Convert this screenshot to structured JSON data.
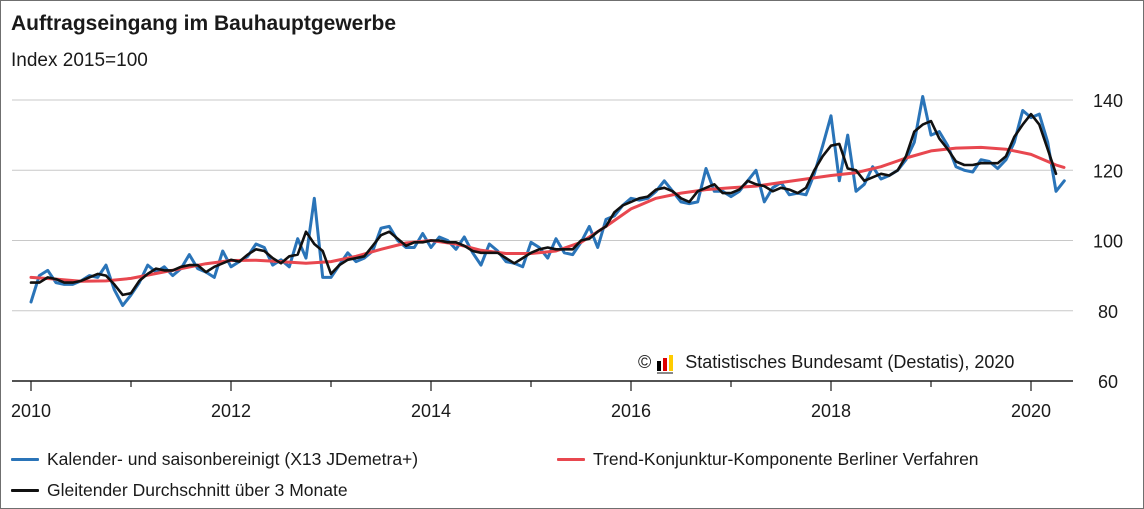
{
  "title": "Auftragseingang im Bauhauptgewerbe",
  "subtitle": "Index 2015=100",
  "copyright": {
    "symbol": "©",
    "text": "Statistisches Bundesamt (Destatis), 2020",
    "logo_colors": [
      "#000000",
      "#dd0000",
      "#ffcc00"
    ]
  },
  "legend": [
    {
      "label": "Kalender- und saisonbereinigt (X13 JDemetra+)",
      "color": "#2a74b8"
    },
    {
      "label": "Trend-Konjunktur-Komponente Berliner Verfahren",
      "color": "#e8474f"
    },
    {
      "label": "Gleitender Durchschnitt über 3 Monate",
      "color": "#111111"
    }
  ],
  "chart_data": {
    "type": "line",
    "title": "Auftragseingang im Bauhauptgewerbe",
    "ylabel": "Index 2015=100",
    "xlim": [
      2010,
      2020.35
    ],
    "ylim": [
      60,
      145
    ],
    "xticks": [
      "2010",
      "2012",
      "2014",
      "2016",
      "2018",
      "2020"
    ],
    "yticks": [
      "60",
      "80",
      "100",
      "120",
      "140"
    ],
    "grid": "horizontal",
    "legend_position": "bottom",
    "series": [
      {
        "name": "Kalender- und saisonbereinigt (X13 JDemetra+)",
        "color": "#2a74b8",
        "points": [
          [
            2010.0,
            82.5
          ],
          [
            2010.083,
            90
          ],
          [
            2010.167,
            91.5
          ],
          [
            2010.25,
            88
          ],
          [
            2010.333,
            87.5
          ],
          [
            2010.417,
            87.5
          ],
          [
            2010.5,
            88.5
          ],
          [
            2010.583,
            90
          ],
          [
            2010.667,
            89.5
          ],
          [
            2010.75,
            93
          ],
          [
            2010.833,
            86
          ],
          [
            2010.917,
            81.5
          ],
          [
            2011.0,
            84.5
          ],
          [
            2011.083,
            88
          ],
          [
            2011.167,
            93
          ],
          [
            2011.25,
            91
          ],
          [
            2011.333,
            92.5
          ],
          [
            2011.417,
            90
          ],
          [
            2011.5,
            92
          ],
          [
            2011.583,
            96
          ],
          [
            2011.667,
            92
          ],
          [
            2011.75,
            91
          ],
          [
            2011.833,
            89.5
          ],
          [
            2011.917,
            97
          ],
          [
            2012.0,
            92.5
          ],
          [
            2012.083,
            94
          ],
          [
            2012.167,
            95.5
          ],
          [
            2012.25,
            99
          ],
          [
            2012.333,
            98
          ],
          [
            2012.417,
            93
          ],
          [
            2012.5,
            94.5
          ],
          [
            2012.583,
            92.5
          ],
          [
            2012.667,
            100.5
          ],
          [
            2012.75,
            95
          ],
          [
            2012.833,
            112
          ],
          [
            2012.917,
            89.5
          ],
          [
            2013.0,
            89.5
          ],
          [
            2013.083,
            93
          ],
          [
            2013.167,
            96.5
          ],
          [
            2013.25,
            94
          ],
          [
            2013.333,
            95
          ],
          [
            2013.417,
            97
          ],
          [
            2013.5,
            103.5
          ],
          [
            2013.583,
            104
          ],
          [
            2013.667,
            100
          ],
          [
            2013.75,
            98
          ],
          [
            2013.833,
            98
          ],
          [
            2013.917,
            102
          ],
          [
            2014.0,
            98
          ],
          [
            2014.083,
            101
          ],
          [
            2014.167,
            100
          ],
          [
            2014.25,
            97.5
          ],
          [
            2014.333,
            101
          ],
          [
            2014.417,
            96.5
          ],
          [
            2014.5,
            93
          ],
          [
            2014.583,
            99
          ],
          [
            2014.667,
            97
          ],
          [
            2014.75,
            94
          ],
          [
            2014.833,
            93.5
          ],
          [
            2014.917,
            92.5
          ],
          [
            2015.0,
            99.5
          ],
          [
            2015.083,
            98
          ],
          [
            2015.167,
            95
          ],
          [
            2015.25,
            100.5
          ],
          [
            2015.333,
            96.5
          ],
          [
            2015.417,
            96
          ],
          [
            2015.5,
            99.5
          ],
          [
            2015.583,
            104
          ],
          [
            2015.667,
            98
          ],
          [
            2015.75,
            106
          ],
          [
            2015.833,
            107
          ],
          [
            2015.917,
            110
          ],
          [
            2016.0,
            112
          ],
          [
            2016.083,
            111.5
          ],
          [
            2016.167,
            112
          ],
          [
            2016.25,
            114
          ],
          [
            2016.333,
            117
          ],
          [
            2016.417,
            114
          ],
          [
            2016.5,
            111
          ],
          [
            2016.583,
            110.5
          ],
          [
            2016.667,
            111
          ],
          [
            2016.75,
            120.5
          ],
          [
            2016.833,
            114
          ],
          [
            2016.917,
            114
          ],
          [
            2017.0,
            112.5
          ],
          [
            2017.083,
            114
          ],
          [
            2017.167,
            117
          ],
          [
            2017.25,
            120
          ],
          [
            2017.333,
            111
          ],
          [
            2017.417,
            115
          ],
          [
            2017.5,
            116.5
          ],
          [
            2017.583,
            113
          ],
          [
            2017.667,
            113.5
          ],
          [
            2017.75,
            113
          ],
          [
            2017.833,
            119
          ],
          [
            2017.917,
            127
          ],
          [
            2018.0,
            135.5
          ],
          [
            2018.083,
            117
          ],
          [
            2018.167,
            130
          ],
          [
            2018.25,
            114
          ],
          [
            2018.333,
            116
          ],
          [
            2018.417,
            121
          ],
          [
            2018.5,
            117.5
          ],
          [
            2018.583,
            118.5
          ],
          [
            2018.667,
            120
          ],
          [
            2018.75,
            123
          ],
          [
            2018.833,
            128
          ],
          [
            2018.917,
            141
          ],
          [
            2019.0,
            130
          ],
          [
            2019.083,
            131
          ],
          [
            2019.167,
            127
          ],
          [
            2019.25,
            121
          ],
          [
            2019.333,
            120
          ],
          [
            2019.417,
            119.5
          ],
          [
            2019.5,
            123
          ],
          [
            2019.583,
            122.5
          ],
          [
            2019.667,
            120.5
          ],
          [
            2019.75,
            123
          ],
          [
            2019.833,
            128
          ],
          [
            2019.917,
            137
          ],
          [
            2020.0,
            135
          ],
          [
            2020.083,
            136
          ],
          [
            2020.167,
            128
          ],
          [
            2020.25,
            114
          ],
          [
            2020.333,
            117
          ]
        ]
      },
      {
        "name": "Trend-Konjunktur-Komponente Berliner Verfahren",
        "color": "#e8474f",
        "points": [
          [
            2010.0,
            89.5
          ],
          [
            2010.25,
            89
          ],
          [
            2010.5,
            88.4
          ],
          [
            2010.75,
            88.5
          ],
          [
            2011.0,
            89.2
          ],
          [
            2011.25,
            90.6
          ],
          [
            2011.5,
            92
          ],
          [
            2011.75,
            93.4
          ],
          [
            2012.0,
            94.3
          ],
          [
            2012.25,
            94.4
          ],
          [
            2012.5,
            94
          ],
          [
            2012.75,
            93.5
          ],
          [
            2013.0,
            94
          ],
          [
            2013.25,
            95.5
          ],
          [
            2013.5,
            97.5
          ],
          [
            2013.75,
            99.3
          ],
          [
            2014.0,
            100
          ],
          [
            2014.25,
            99
          ],
          [
            2014.5,
            97.2
          ],
          [
            2014.75,
            96.3
          ],
          [
            2015.0,
            96.3
          ],
          [
            2015.25,
            97
          ],
          [
            2015.5,
            99.5
          ],
          [
            2015.75,
            104
          ],
          [
            2016.0,
            109
          ],
          [
            2016.25,
            112
          ],
          [
            2016.5,
            113.5
          ],
          [
            2016.75,
            114.5
          ],
          [
            2017.0,
            115
          ],
          [
            2017.25,
            115.5
          ],
          [
            2017.5,
            116.5
          ],
          [
            2017.75,
            117.5
          ],
          [
            2018.0,
            118.5
          ],
          [
            2018.25,
            119.3
          ],
          [
            2018.5,
            121
          ],
          [
            2018.75,
            123.5
          ],
          [
            2019.0,
            125.5
          ],
          [
            2019.25,
            126.3
          ],
          [
            2019.5,
            126.5
          ],
          [
            2019.75,
            126
          ],
          [
            2020.0,
            124.5
          ],
          [
            2020.25,
            121.5
          ],
          [
            2020.33,
            120.8
          ]
        ]
      },
      {
        "name": "Gleitender Durchschnitt über 3 Monate",
        "color": "#111111",
        "points": [
          [
            2010.0,
            88
          ],
          [
            2010.083,
            88
          ],
          [
            2010.167,
            89.5
          ],
          [
            2010.25,
            89
          ],
          [
            2010.333,
            88
          ],
          [
            2010.417,
            88
          ],
          [
            2010.5,
            88.5
          ],
          [
            2010.583,
            89.5
          ],
          [
            2010.667,
            90.5
          ],
          [
            2010.75,
            90
          ],
          [
            2010.833,
            87.5
          ],
          [
            2010.917,
            84.5
          ],
          [
            2011.0,
            85
          ],
          [
            2011.083,
            88.5
          ],
          [
            2011.167,
            90.5
          ],
          [
            2011.25,
            92
          ],
          [
            2011.333,
            91.5
          ],
          [
            2011.417,
            91.5
          ],
          [
            2011.5,
            92.5
          ],
          [
            2011.583,
            93
          ],
          [
            2011.667,
            93
          ],
          [
            2011.75,
            91
          ],
          [
            2011.833,
            92.5
          ],
          [
            2011.917,
            93.5
          ],
          [
            2012.0,
            94.5
          ],
          [
            2012.083,
            94
          ],
          [
            2012.167,
            96
          ],
          [
            2012.25,
            97.5
          ],
          [
            2012.333,
            97
          ],
          [
            2012.417,
            95
          ],
          [
            2012.5,
            93.5
          ],
          [
            2012.583,
            95.5
          ],
          [
            2012.667,
            96
          ],
          [
            2012.75,
            102.5
          ],
          [
            2012.833,
            99
          ],
          [
            2012.917,
            97
          ],
          [
            2013.0,
            90.5
          ],
          [
            2013.083,
            93
          ],
          [
            2013.167,
            94.5
          ],
          [
            2013.25,
            95
          ],
          [
            2013.333,
            95.5
          ],
          [
            2013.417,
            98.5
          ],
          [
            2013.5,
            101.5
          ],
          [
            2013.583,
            102.5
          ],
          [
            2013.667,
            100.5
          ],
          [
            2013.75,
            98.5
          ],
          [
            2013.833,
            99.5
          ],
          [
            2013.917,
            99.5
          ],
          [
            2014.0,
            100
          ],
          [
            2014.083,
            100
          ],
          [
            2014.167,
            99.5
          ],
          [
            2014.25,
            99.5
          ],
          [
            2014.333,
            98.5
          ],
          [
            2014.417,
            97
          ],
          [
            2014.5,
            96.5
          ],
          [
            2014.583,
            96.5
          ],
          [
            2014.667,
            96.5
          ],
          [
            2014.75,
            95
          ],
          [
            2014.833,
            93.5
          ],
          [
            2014.917,
            95
          ],
          [
            2015.0,
            96.5
          ],
          [
            2015.083,
            97.5
          ],
          [
            2015.167,
            98
          ],
          [
            2015.25,
            97.5
          ],
          [
            2015.333,
            97.5
          ],
          [
            2015.417,
            97.5
          ],
          [
            2015.5,
            100
          ],
          [
            2015.583,
            100.5
          ],
          [
            2015.667,
            102.5
          ],
          [
            2015.75,
            104
          ],
          [
            2015.833,
            108
          ],
          [
            2015.917,
            110
          ],
          [
            2016.0,
            111
          ],
          [
            2016.083,
            112
          ],
          [
            2016.167,
            112.5
          ],
          [
            2016.25,
            114.5
          ],
          [
            2016.333,
            115
          ],
          [
            2016.417,
            114
          ],
          [
            2016.5,
            112
          ],
          [
            2016.583,
            111
          ],
          [
            2016.667,
            114
          ],
          [
            2016.75,
            115
          ],
          [
            2016.833,
            116
          ],
          [
            2016.917,
            113.5
          ],
          [
            2017.0,
            113.5
          ],
          [
            2017.083,
            114.5
          ],
          [
            2017.167,
            117
          ],
          [
            2017.25,
            116
          ],
          [
            2017.333,
            115.5
          ],
          [
            2017.417,
            114
          ],
          [
            2017.5,
            115
          ],
          [
            2017.583,
            114.5
          ],
          [
            2017.667,
            113.5
          ],
          [
            2017.75,
            115
          ],
          [
            2017.833,
            120
          ],
          [
            2017.917,
            124
          ],
          [
            2018.0,
            127
          ],
          [
            2018.083,
            127.5
          ],
          [
            2018.167,
            120.5
          ],
          [
            2018.25,
            120
          ],
          [
            2018.333,
            117
          ],
          [
            2018.417,
            118
          ],
          [
            2018.5,
            119
          ],
          [
            2018.583,
            118.5
          ],
          [
            2018.667,
            120
          ],
          [
            2018.75,
            124
          ],
          [
            2018.833,
            131
          ],
          [
            2018.917,
            133
          ],
          [
            2019.0,
            134
          ],
          [
            2019.083,
            129
          ],
          [
            2019.167,
            126
          ],
          [
            2019.25,
            122.5
          ],
          [
            2019.333,
            121.5
          ],
          [
            2019.417,
            121.5
          ],
          [
            2019.5,
            122
          ],
          [
            2019.583,
            122
          ],
          [
            2019.667,
            122
          ],
          [
            2019.75,
            124
          ],
          [
            2019.833,
            129.5
          ],
          [
            2019.917,
            133
          ],
          [
            2020.0,
            136
          ],
          [
            2020.083,
            133
          ],
          [
            2020.167,
            126
          ],
          [
            2020.25,
            119
          ]
        ]
      }
    ]
  }
}
